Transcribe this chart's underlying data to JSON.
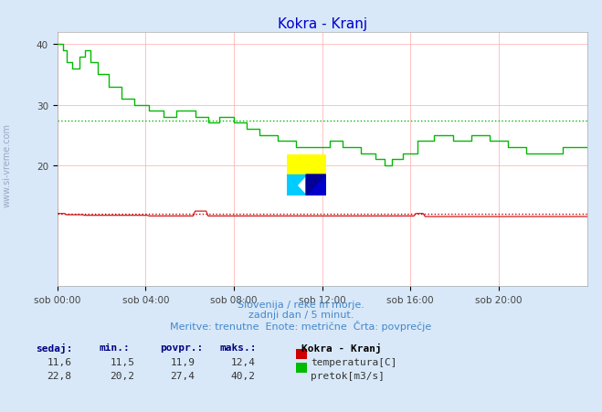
{
  "title": "Kokra - Kranj",
  "title_color": "#0000cc",
  "bg_color": "#d8e8f8",
  "plot_bg_color": "#ffffff",
  "grid_color": "#ffaaaa",
  "xticklabels": [
    "sob 00:00",
    "sob 04:00",
    "sob 08:00",
    "sob 12:00",
    "sob 16:00",
    "sob 20:00"
  ],
  "xtick_positions": [
    0,
    48,
    96,
    144,
    192,
    240
  ],
  "ylim": [
    0,
    42
  ],
  "yticks": [
    20,
    30,
    40
  ],
  "temp_avg": 11.9,
  "flow_avg": 27.4,
  "temp_color": "#cc0000",
  "flow_color": "#00bb00",
  "subtitle1": "Slovenija / reke in morje.",
  "subtitle2": "zadnji dan / 5 minut.",
  "subtitle3": "Meritve: trenutne  Enote: metrične  Črta: povprečje",
  "legend_title": "Kokra - Kranj",
  "legend_items": [
    {
      "label": "temperatura[C]",
      "color": "#cc0000"
    },
    {
      "label": "pretok[m3/s]",
      "color": "#00bb00"
    }
  ],
  "table_headers": [
    "sedaj:",
    "min.:",
    "povpr.:",
    "maks.:"
  ],
  "table_row_temp": [
    "11,6",
    "11,5",
    "11,9",
    "12,4"
  ],
  "table_row_flow": [
    "22,8",
    "20,2",
    "27,4",
    "40,2"
  ],
  "side_label": "www.si-vreme.com",
  "n_points": 289
}
